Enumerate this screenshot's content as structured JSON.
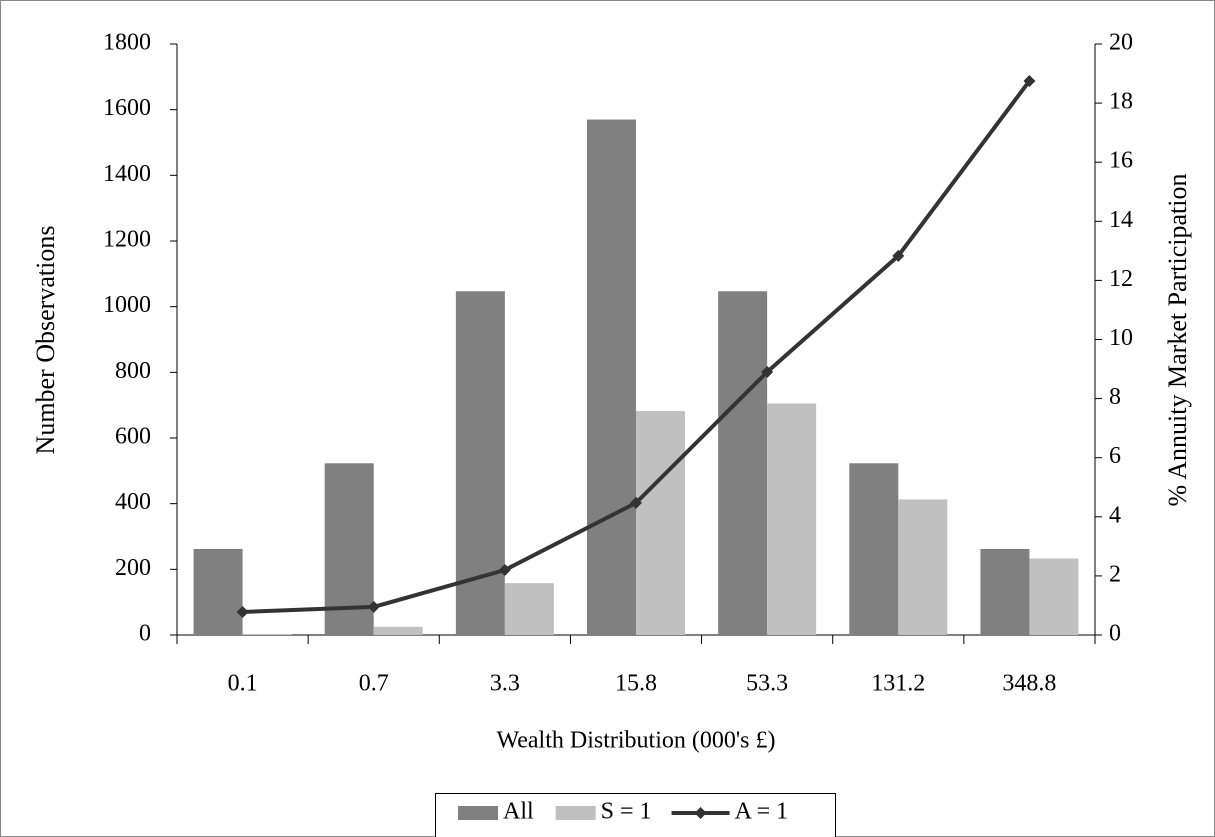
{
  "chart_data": {
    "type": "bar",
    "x_label": "Wealth Distribution (000's £)",
    "y_label": "Number Observations",
    "y2_label": "% Annuity Market Participation",
    "categories": [
      "0.1",
      "0.7",
      "3.3",
      "15.8",
      "53.3",
      "131.2",
      "348.8"
    ],
    "series": [
      {
        "name": "All",
        "type": "bar",
        "color": "#808080",
        "values": [
          262,
          523,
          1047,
          1570,
          1047,
          523,
          262
        ]
      },
      {
        "name": "S = 1",
        "type": "bar",
        "color": "#c0c0c0",
        "values": [
          3,
          25,
          158,
          682,
          705,
          413,
          233
        ]
      },
      {
        "name": "A = 1",
        "type": "line",
        "axis": "y2",
        "color": "#333333",
        "values": [
          0.78,
          0.95,
          2.2,
          4.47,
          8.9,
          12.83,
          18.75
        ]
      }
    ],
    "ylim": [
      0,
      1800
    ],
    "yticks": [
      0,
      200,
      400,
      600,
      800,
      1000,
      1200,
      1400,
      1600,
      1800
    ],
    "y2lim": [
      0,
      20
    ],
    "y2ticks": [
      0,
      2,
      4,
      6,
      8,
      10,
      12,
      14,
      16,
      18,
      20
    ],
    "grid": false,
    "legend": "bottom"
  }
}
